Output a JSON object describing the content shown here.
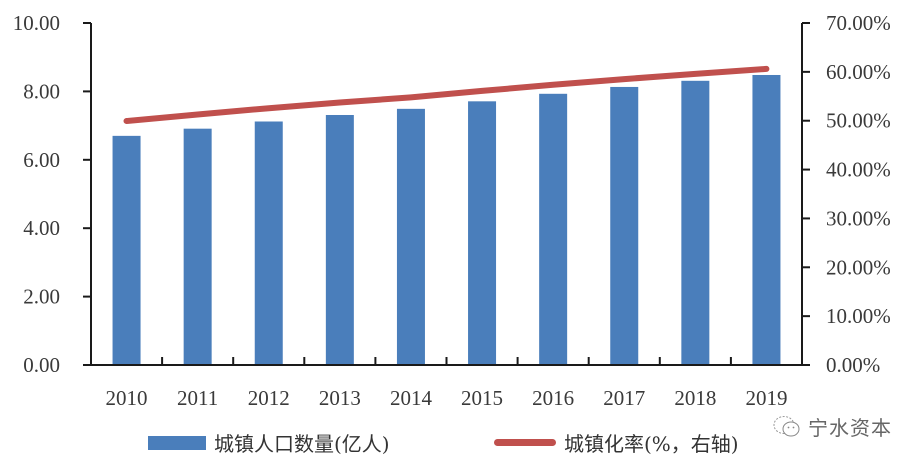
{
  "chart_data": {
    "type": "bar+line",
    "title": "",
    "categories": [
      "2010",
      "2011",
      "2012",
      "2013",
      "2014",
      "2015",
      "2016",
      "2017",
      "2018",
      "2019"
    ],
    "series": [
      {
        "name": "城镇人口数量(亿人)",
        "type": "bar",
        "axis": "left",
        "color": "#4a7ebb",
        "values": [
          6.7,
          6.91,
          7.12,
          7.31,
          7.49,
          7.71,
          7.93,
          8.13,
          8.31,
          8.48
        ]
      },
      {
        "name": "城镇化率(%，右轴)",
        "type": "line",
        "axis": "right",
        "color": "#c0504d",
        "values": [
          49.95,
          51.27,
          52.57,
          53.73,
          54.77,
          56.1,
          57.35,
          58.52,
          59.58,
          60.6
        ]
      }
    ],
    "left_axis": {
      "label": "",
      "ylim": [
        0,
        10
      ],
      "ticks": [
        "0.00",
        "2.00",
        "4.00",
        "6.00",
        "8.00",
        "10.00"
      ]
    },
    "right_axis": {
      "label": "",
      "ylim": [
        0,
        70
      ],
      "ticks": [
        "0.00%",
        "10.00%",
        "20.00%",
        "30.00%",
        "40.00%",
        "50.00%",
        "60.00%",
        "70.00%"
      ]
    },
    "xlabel": "",
    "grid": false,
    "legend_position": "bottom"
  },
  "legend": {
    "bar_label": "城镇人口数量(亿人)",
    "line_label": "城镇化率(%，右轴)"
  },
  "watermark": {
    "text": "宁水资本"
  }
}
